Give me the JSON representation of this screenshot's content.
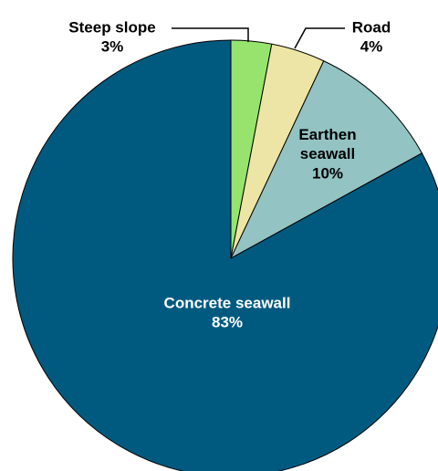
{
  "chart_data": {
    "type": "pie",
    "categories": [
      "Steep slope",
      "Road",
      "Earthen seawall",
      "Concrete seawall"
    ],
    "values": [
      3,
      4,
      10,
      83
    ],
    "value_labels": [
      "3%",
      "4%",
      "10%",
      "83%"
    ],
    "colors": [
      "#96e46e",
      "#ece5a6",
      "#93c3c3",
      "#005a80"
    ]
  }
}
